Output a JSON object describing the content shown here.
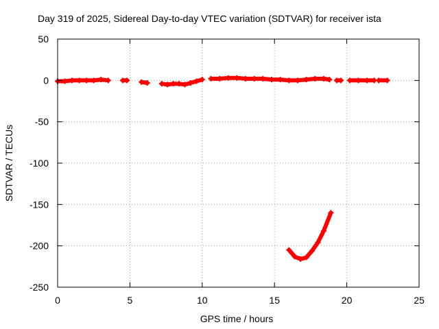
{
  "chart_data": {
    "type": "scatter",
    "title": "Day 319 of 2025, Sidereal Day-to-day VTEC variation (SDTVAR) for receiver ista",
    "xlabel": "GPS time / hours",
    "ylabel": "SDTVAR / TECUs",
    "xlim": [
      0,
      25
    ],
    "ylim": [
      -250,
      50
    ],
    "xticks": [
      0,
      5,
      10,
      15,
      20,
      25
    ],
    "yticks": [
      50,
      0,
      -50,
      -100,
      -150,
      -200,
      -250
    ],
    "grid": true,
    "marker": "plus",
    "series": [
      {
        "color": "#ff0000",
        "segments": [
          [
            [
              0.0,
              -1
            ],
            [
              0.5,
              -1
            ],
            [
              1.0,
              0
            ],
            [
              1.5,
              0
            ],
            [
              2.0,
              0
            ],
            [
              2.5,
              0
            ],
            [
              3.0,
              1
            ],
            [
              3.5,
              0
            ]
          ],
          [
            [
              4.5,
              0
            ],
            [
              4.8,
              0
            ]
          ],
          [
            [
              5.8,
              -2
            ],
            [
              6.2,
              -3
            ]
          ],
          [
            [
              7.2,
              -4
            ],
            [
              7.6,
              -5
            ],
            [
              8.0,
              -4
            ],
            [
              8.4,
              -4
            ],
            [
              8.8,
              -5
            ],
            [
              9.2,
              -3
            ],
            [
              9.6,
              -1
            ],
            [
              10.0,
              1
            ]
          ],
          [
            [
              10.6,
              2
            ],
            [
              11.2,
              2
            ],
            [
              11.8,
              3
            ],
            [
              12.4,
              3
            ],
            [
              13.0,
              2
            ],
            [
              13.6,
              2
            ],
            [
              14.2,
              2
            ],
            [
              14.8,
              1
            ],
            [
              15.4,
              1
            ],
            [
              16.0,
              0
            ],
            [
              16.6,
              0
            ],
            [
              17.2,
              1
            ],
            [
              17.8,
              2
            ],
            [
              18.4,
              2
            ],
            [
              18.8,
              1
            ]
          ],
          [
            [
              19.3,
              0
            ],
            [
              19.6,
              0
            ]
          ],
          [
            [
              20.2,
              0
            ],
            [
              20.8,
              0
            ],
            [
              21.4,
              0
            ],
            [
              21.9,
              0
            ]
          ],
          [
            [
              22.2,
              0
            ],
            [
              22.8,
              0
            ]
          ],
          [
            [
              16.0,
              -205
            ],
            [
              16.4,
              -213
            ],
            [
              16.8,
              -216
            ],
            [
              17.2,
              -214
            ],
            [
              17.6,
              -206
            ],
            [
              18.0,
              -196
            ],
            [
              18.4,
              -182
            ],
            [
              18.9,
              -160
            ]
          ]
        ]
      }
    ]
  }
}
